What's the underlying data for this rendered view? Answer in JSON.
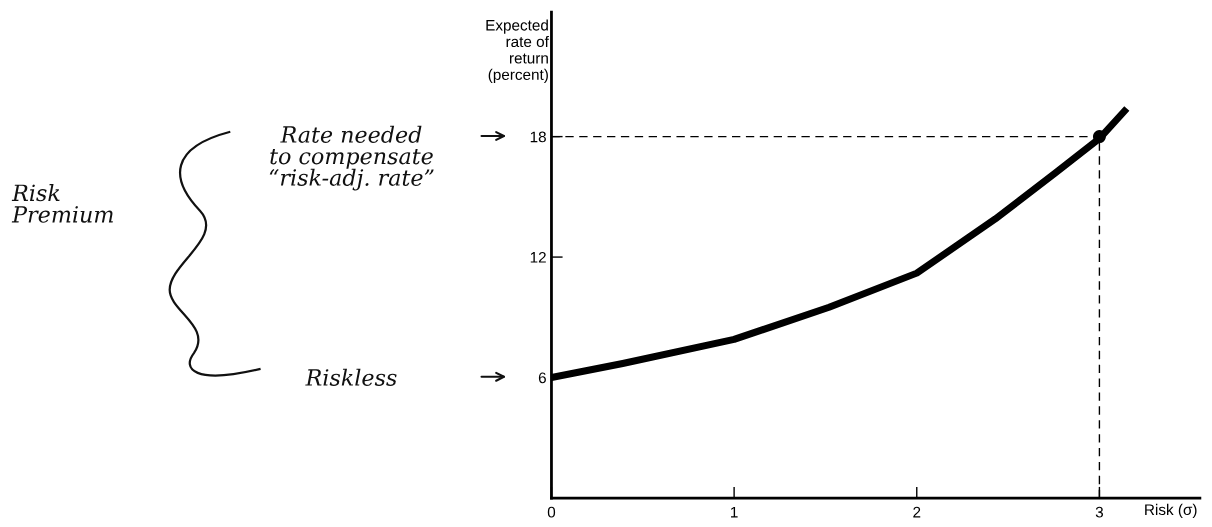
{
  "chart_data": {
    "type": "line",
    "xlabel": "Risk (σ)",
    "ylabel": "Expected\nrate of\nreturn\n(percent)",
    "series": [
      {
        "color": "#000000",
        "x": [
          0,
          0.39,
          1,
          1.52,
          2,
          2.43,
          2.76,
          3,
          3.15
        ],
        "values": [
          6,
          6.7,
          7.9,
          9.5,
          11.2,
          13.9,
          16.2,
          17.9,
          19.4
        ]
      },
      {
        "type": "scatter",
        "color": "#000000",
        "marker": "circle",
        "x": [
          3
        ],
        "values": [
          18
        ]
      }
    ],
    "xlim": [
      0,
      3.55
    ],
    "xticks": [
      0,
      1,
      2,
      3
    ],
    "ylim": [
      0,
      24.2
    ],
    "yticks": [
      6,
      12,
      18
    ],
    "ref_lines": [
      {
        "axis": "y",
        "value": 18,
        "line_style": "dashed",
        "color": "#000000"
      },
      {
        "axis": "x",
        "value": 3,
        "line_style": "dashed",
        "color": "#000000"
      }
    ],
    "annotations": [
      "Rate needed\nto compensate\n“risk-adj. rate”",
      "Risk\nPremium",
      "Riskless"
    ],
    "grid": false,
    "legend": false
  }
}
